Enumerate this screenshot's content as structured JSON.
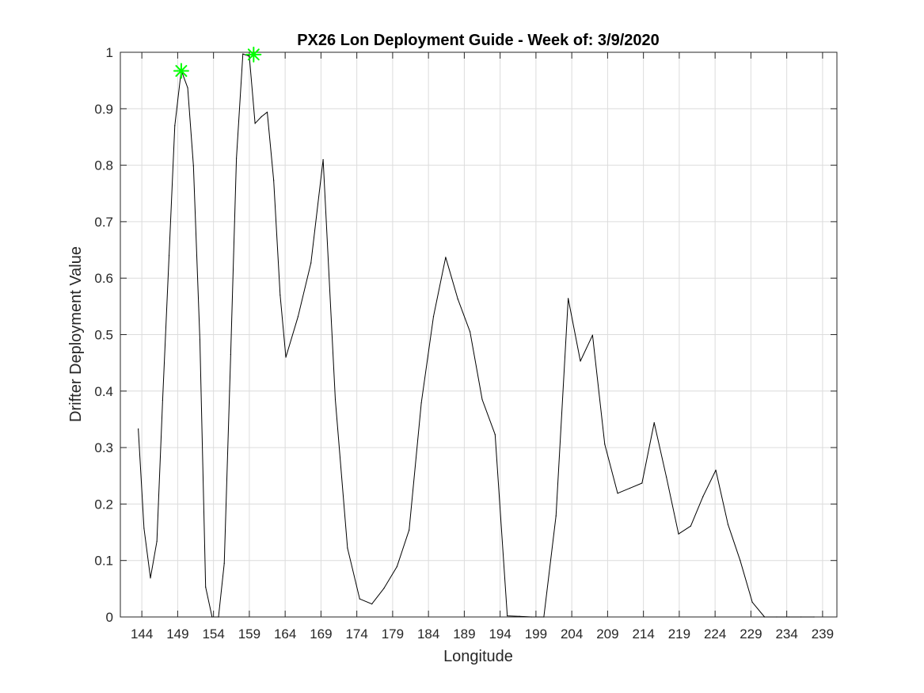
{
  "chart_data": {
    "type": "line",
    "title": "PX26 Lon Deployment Guide - Week of: 3/9/2020",
    "xlabel": "Longitude",
    "ylabel": "Drifter Deployment Value",
    "xlim": [
      141,
      241
    ],
    "ylim": [
      0,
      1
    ],
    "xticks": [
      144,
      149,
      154,
      159,
      164,
      169,
      174,
      179,
      184,
      189,
      194,
      199,
      204,
      209,
      214,
      219,
      224,
      229,
      234,
      239
    ],
    "yticks": [
      0,
      0.1,
      0.2,
      0.3,
      0.4,
      0.5,
      0.6,
      0.7,
      0.8,
      0.9,
      1
    ],
    "ytick_labels": [
      "0",
      "0.1",
      "0.2",
      "0.3",
      "0.4",
      "0.5",
      "0.6",
      "0.7",
      "0.8",
      "0.9",
      "1"
    ],
    "grid": true,
    "series": [
      {
        "color": "#000000",
        "marker": "none",
        "x": [
          143.5,
          144.3,
          145.2,
          146.1,
          146.9,
          147.8,
          148.6,
          149.5,
          150.4,
          151.2,
          152.1,
          152.9,
          153.8,
          154.7,
          155.5,
          156.4,
          157.2,
          158.1,
          159.0,
          159.8,
          160.7,
          161.5,
          162.4,
          163.3,
          164.1,
          165.8,
          167.6,
          169.3,
          171.0,
          172.7,
          174.4,
          176.1,
          177.8,
          179.6,
          181.3,
          183.0,
          184.7,
          186.4,
          188.1,
          189.8,
          191.5,
          193.3,
          195.0,
          196.7,
          198.4,
          200.1,
          201.8,
          203.5,
          205.2,
          206.9,
          208.6,
          210.4,
          212.1,
          213.8,
          215.5,
          217.2,
          218.9,
          220.6,
          222.3,
          224.1,
          225.8,
          227.5,
          229.2,
          230.9,
          232.6,
          234.3,
          236.0,
          237.8
        ],
        "y": [
          0.333,
          0.157,
          0.069,
          0.134,
          0.384,
          0.64,
          0.87,
          0.968,
          0.937,
          0.799,
          0.491,
          0.053,
          0.0,
          0.0,
          0.095,
          0.465,
          0.812,
          0.997,
          0.993,
          0.874,
          0.886,
          0.894,
          0.773,
          0.57,
          0.46,
          0.532,
          0.627,
          0.81,
          0.385,
          0.122,
          0.032,
          0.023,
          0.051,
          0.089,
          0.154,
          0.379,
          0.532,
          0.637,
          0.563,
          0.505,
          0.385,
          0.323,
          0.002,
          0.001,
          0.0,
          0.0,
          0.179,
          0.564,
          0.453,
          0.499,
          0.306,
          0.219,
          0.228,
          0.237,
          0.344,
          0.248,
          0.147,
          0.161,
          0.213,
          0.26,
          0.164,
          0.1,
          0.026,
          0.0,
          0.0,
          0.0,
          0.0,
          0.0
        ]
      },
      {
        "color": "#00ff00",
        "marker": "asterisk",
        "line": "none",
        "x": [
          149.5,
          159.6
        ],
        "y": [
          0.967,
          0.996
        ]
      }
    ]
  }
}
